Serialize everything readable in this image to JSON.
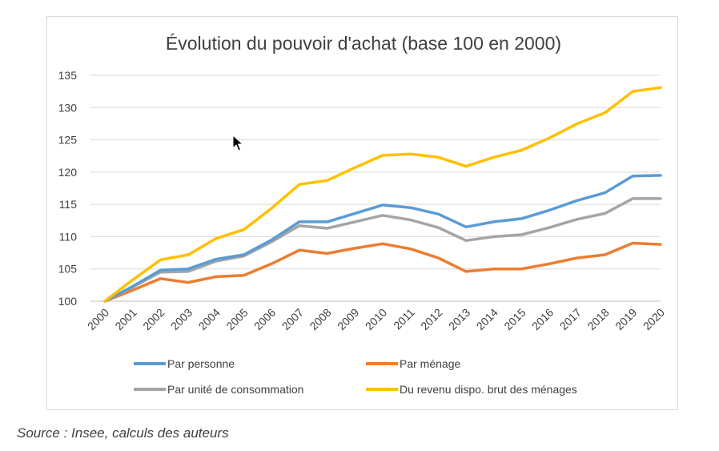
{
  "chart_data": {
    "type": "line",
    "title": "Évolution du pouvoir d'achat (base 100 en 2000)",
    "xlabel": "",
    "ylabel": "",
    "categories": [
      "2000",
      "2001",
      "2002",
      "2003",
      "2004",
      "2005",
      "2006",
      "2007",
      "2008",
      "2009",
      "2010",
      "2011",
      "2012",
      "2013",
      "2014",
      "2015",
      "2016",
      "2017",
      "2018",
      "2019",
      "2020"
    ],
    "yticks": [
      "100",
      "105",
      "110",
      "115",
      "120",
      "125",
      "130",
      "135"
    ],
    "ylim": [
      100,
      135
    ],
    "grid": true,
    "legend_position": "bottom",
    "series": [
      {
        "name": "Par personne",
        "color": "#5b9bd5",
        "values": [
          100,
          102.3,
          104.8,
          105.0,
          106.5,
          107.2,
          109.5,
          112.3,
          112.3,
          113.6,
          114.9,
          114.5,
          113.5,
          111.5,
          112.3,
          112.8,
          114.1,
          115.6,
          116.8,
          119.4,
          119.5
        ]
      },
      {
        "name": "Par ménage",
        "color": "#ed7d31",
        "values": [
          100,
          101.7,
          103.5,
          102.9,
          103.8,
          104.0,
          105.8,
          107.9,
          107.4,
          108.2,
          108.9,
          108.1,
          106.7,
          104.6,
          105.0,
          105.0,
          105.8,
          106.7,
          107.2,
          109.0,
          108.8
        ]
      },
      {
        "name": "Par unité de consommation",
        "color": "#a5a5a5",
        "values": [
          100,
          102.2,
          104.5,
          104.6,
          106.2,
          107.0,
          109.2,
          111.7,
          111.3,
          112.3,
          113.3,
          112.6,
          111.4,
          109.4,
          110.0,
          110.3,
          111.4,
          112.7,
          113.6,
          115.9,
          115.9
        ]
      },
      {
        "name": "Du revenu dispo. brut des ménages",
        "color": "#ffc000",
        "values": [
          100,
          103.3,
          106.4,
          107.2,
          109.7,
          111.1,
          114.4,
          118.1,
          118.7,
          120.7,
          122.6,
          122.8,
          122.3,
          120.9,
          122.3,
          123.4,
          125.3,
          127.5,
          129.2,
          132.5,
          133.1
        ]
      }
    ]
  },
  "source_note": "Source : Insee, calculs des auteurs"
}
